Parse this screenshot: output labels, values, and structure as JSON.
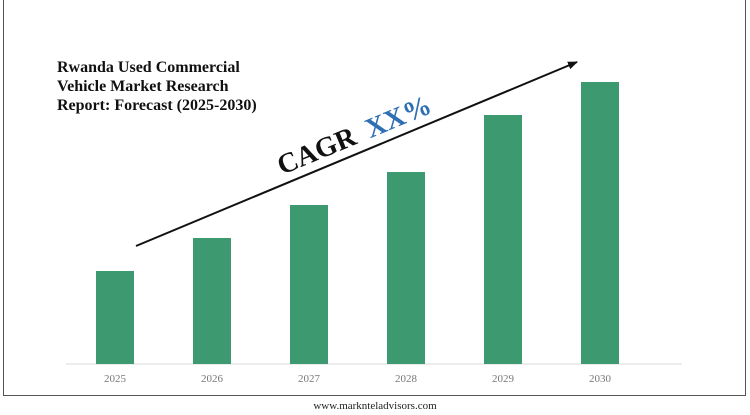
{
  "title_lines": [
    "Rwanda Used Commercial",
    "Vehicle Market Research",
    "Report: Forecast (2025-2030)"
  ],
  "cagr": {
    "prefix": "CAGR",
    "value": "XX%"
  },
  "footer": {
    "website": "www.marknteladvisors.com"
  },
  "colors": {
    "bar": "#3d9970",
    "cagr_value": "#2f6fb3",
    "text": "#111111"
  },
  "chart_data": {
    "type": "bar",
    "title": "Rwanda Used Commercial Vehicle Market Research Report: Forecast (2025-2030)",
    "categories": [
      "2025",
      "2026",
      "2027",
      "2028",
      "2029",
      "2030"
    ],
    "values": [
      3.1,
      4.2,
      5.3,
      6.4,
      8.3,
      9.4
    ],
    "ylim": [
      0,
      10
    ],
    "grid": false,
    "legend": "none",
    "annotation": "CAGR XX%"
  }
}
